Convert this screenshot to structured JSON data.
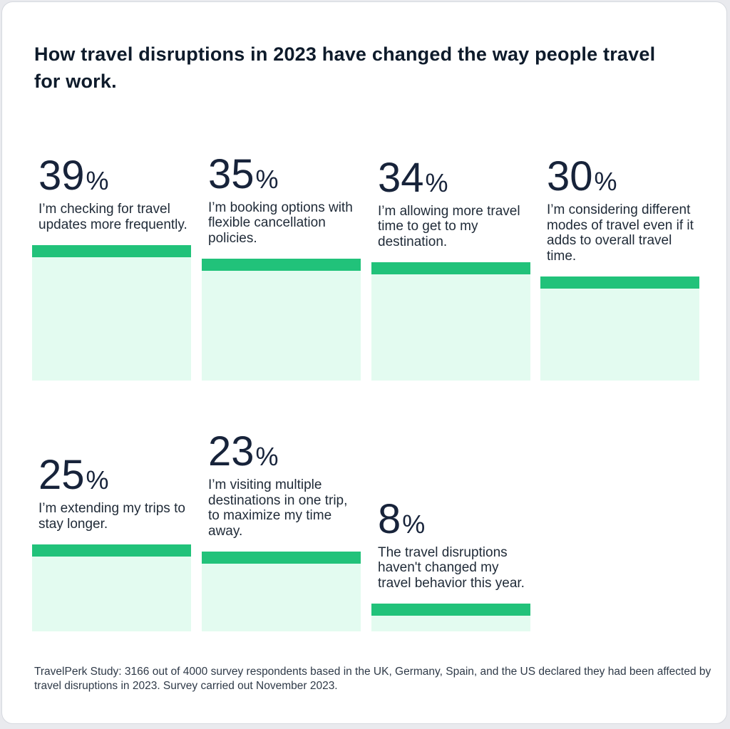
{
  "title": "How travel disruptions in 2023 have changed the way people travel for work.",
  "footnote": "TravelPerk Study: 3166 out of 4000 survey respondents based in the UK, Germany, Spain, and the US declared they had been affected by travel disruptions in 2023. Survey carried out November 2023.",
  "colors": {
    "bar_top": "#21c27a",
    "bar_fill": "#e3fbf0",
    "text": "#1f2a37",
    "title": "#0e1b2b"
  },
  "chart_data": {
    "type": "bar",
    "unit": "%",
    "ylim": [
      0,
      39
    ],
    "categories": [
      "I’m checking for travel updates more frequently.",
      "I’m booking options with flexible cancellation policies.",
      "I’m allowing more travel time to get to my destination.",
      "I’m considering different modes of travel even if it adds to overall travel time.",
      "I’m extending my trips to stay longer.",
      "I’m visiting multiple destinations in one trip, to maximize my time away.",
      "The travel disruptions haven't changed my travel behavior this year."
    ],
    "values": [
      39,
      35,
      34,
      30,
      25,
      23,
      8
    ]
  }
}
